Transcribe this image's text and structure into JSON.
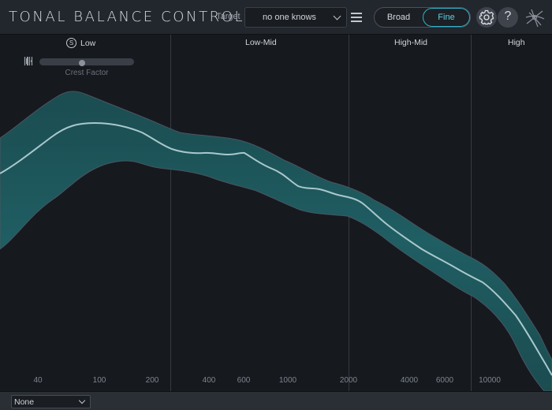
{
  "header": {
    "title": "TONAL BALANCE CONTROL",
    "target_label": "Target",
    "target_value": "no one knows",
    "mode_options": [
      "Broad",
      "Fine"
    ],
    "mode_selected": "Fine",
    "icons": [
      "menu-icon",
      "gear-icon",
      "help-icon",
      "ozone-logo-icon"
    ]
  },
  "bands": {
    "low": "Low",
    "low_mid": "Low-Mid",
    "high_mid": "High-Mid",
    "high": "High",
    "solo_glyph": "S"
  },
  "crest": {
    "label": "Crest Factor",
    "value": 0.45
  },
  "frequency_ticks": [
    "40",
    "100",
    "200",
    "400",
    "600",
    "1000",
    "2000",
    "4000",
    "6000",
    "10000"
  ],
  "footer": {
    "source_value": "None"
  },
  "colors": {
    "accent": "#2fb3c9",
    "band_fill": "#1d5a5e",
    "curve": "#a9c8cc",
    "background": "#16191e"
  }
}
